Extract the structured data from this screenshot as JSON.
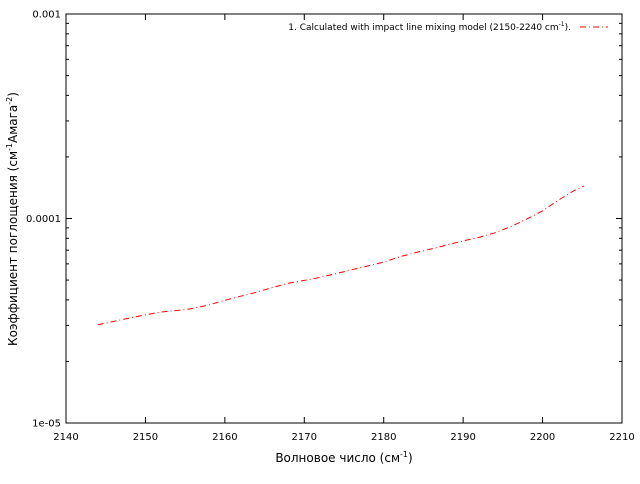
{
  "chart_data": {
    "type": "line",
    "title": "",
    "xlabel": "Волновое число (см",
    "xlabel_sup": "-1",
    "xlabel_tail": ")",
    "ylabel": {
      "part1": "Коэффициент поглощения (см",
      "sup1": "-1",
      "part2": "Амага",
      "sup2": "-2",
      "part3": ")"
    },
    "xlim": [
      2140,
      2210
    ],
    "ylim": [
      1e-05,
      0.001
    ],
    "yscale": "log",
    "grid": false,
    "legend_position": "top-right",
    "x_ticks": [
      2140,
      2150,
      2160,
      2170,
      2180,
      2190,
      2200,
      2210
    ],
    "x_tick_labels": [
      "2140",
      "2150",
      "2160",
      "2170",
      "2180",
      "2190",
      "2200",
      "2210"
    ],
    "y_ticks": [
      1e-05,
      0.0001,
      0.001
    ],
    "y_tick_labels": [
      "1e-05",
      "0.0001",
      "0.001"
    ],
    "series": [
      {
        "name": "1. Calculated with impact line mixing model (2150-2240 cm",
        "name_sup": "-1",
        "name_tail": ").",
        "color": "#ff0000",
        "dash": "dash-dot",
        "x": [
          2144,
          2146,
          2148,
          2150,
          2152,
          2154,
          2156,
          2158,
          2160,
          2162,
          2164,
          2166,
          2168,
          2170,
          2172,
          2174,
          2176,
          2178,
          2180,
          2182,
          2184,
          2186,
          2188,
          2190,
          2192,
          2194,
          2196,
          2198,
          2200,
          2202,
          2204,
          2205.2
        ],
        "y": [
          3.02e-05,
          3.14e-05,
          3.26e-05,
          3.38e-05,
          3.49e-05,
          3.55e-05,
          3.63e-05,
          3.78e-05,
          3.98e-05,
          4.17e-05,
          4.36e-05,
          4.6e-05,
          4.82e-05,
          4.98e-05,
          5.16e-05,
          5.38e-05,
          5.62e-05,
          5.86e-05,
          6.12e-05,
          6.5e-05,
          6.81e-05,
          7.1e-05,
          7.43e-05,
          7.77e-05,
          8.08e-05,
          8.51e-05,
          9.13e-05,
          9.93e-05,
          0.000109,
          0.000123,
          0.000137,
          0.000144
        ]
      }
    ]
  }
}
